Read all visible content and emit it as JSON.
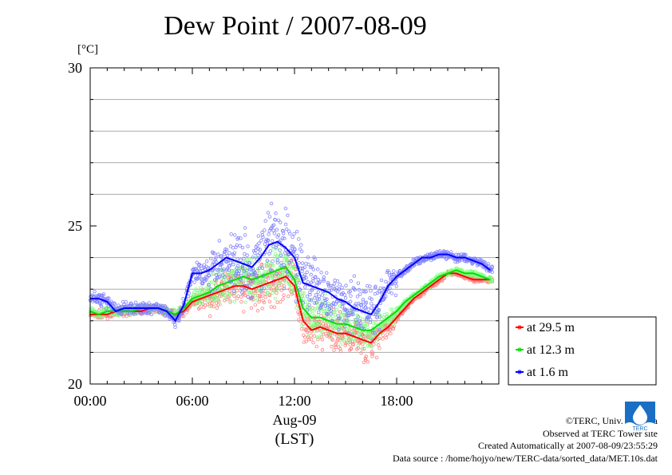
{
  "chart_data": {
    "type": "line",
    "title": "Dew Point / 2007-08-09",
    "ylabel": "[°C]",
    "xlabel": "Aug-09",
    "xlabel2": "(LST)",
    "ylim": [
      20,
      30
    ],
    "xlim": [
      0,
      24
    ],
    "yticks": [
      20,
      25,
      30
    ],
    "ygrid": [
      21,
      22,
      23,
      24,
      26,
      27,
      28,
      29
    ],
    "xticks": [
      {
        "hour": 0,
        "label": "00:00"
      },
      {
        "hour": 6,
        "label": "06:00"
      },
      {
        "hour": 12,
        "label": "12:00"
      },
      {
        "hour": 18,
        "label": "18:00"
      }
    ],
    "legend_position": "right",
    "x": [
      0,
      0.5,
      1,
      1.5,
      2,
      2.5,
      3,
      3.5,
      4,
      4.5,
      5,
      5.5,
      6,
      6.5,
      7,
      7.5,
      8,
      8.5,
      9,
      9.5,
      10,
      10.5,
      11,
      11.5,
      12,
      12.5,
      13,
      13.5,
      14,
      14.5,
      15,
      15.5,
      16,
      16.5,
      17,
      17.5,
      18,
      18.5,
      19,
      19.5,
      20,
      20.5,
      21,
      21.5,
      22,
      22.5,
      23,
      23.5
    ],
    "series": [
      {
        "name": "at 29.5 m",
        "color": "#ff0000",
        "scatter_color": "#ff8080",
        "values": [
          22.2,
          22.2,
          22.2,
          22.3,
          22.3,
          22.3,
          22.3,
          22.4,
          22.4,
          22.3,
          22.2,
          22.3,
          22.6,
          22.7,
          22.8,
          22.9,
          23.0,
          23.1,
          23.1,
          23.0,
          23.1,
          23.2,
          23.3,
          23.4,
          23.1,
          22.0,
          21.7,
          21.8,
          21.7,
          21.6,
          21.6,
          21.5,
          21.4,
          21.3,
          21.6,
          21.8,
          22.1,
          22.4,
          22.7,
          22.9,
          23.1,
          23.3,
          23.5,
          23.5,
          23.4,
          23.3,
          23.3,
          23.3
        ]
      },
      {
        "name": "at 12.3 m",
        "color": "#00dd00",
        "scatter_color": "#80ff80",
        "values": [
          22.3,
          22.2,
          22.3,
          22.3,
          22.3,
          22.3,
          22.4,
          22.4,
          22.4,
          22.3,
          22.2,
          22.4,
          22.7,
          22.8,
          22.9,
          23.1,
          23.2,
          23.3,
          23.4,
          23.3,
          23.4,
          23.5,
          23.6,
          23.7,
          23.3,
          22.4,
          22.1,
          22.1,
          22.0,
          21.9,
          21.9,
          21.8,
          21.7,
          21.7,
          21.9,
          22.1,
          22.3,
          22.6,
          22.8,
          23.0,
          23.2,
          23.4,
          23.5,
          23.6,
          23.5,
          23.5,
          23.4,
          23.3
        ]
      },
      {
        "name": "at 1.6 m",
        "color": "#0000ff",
        "scatter_color": "#8080ff",
        "values": [
          22.7,
          22.7,
          22.6,
          22.3,
          22.4,
          22.4,
          22.4,
          22.4,
          22.4,
          22.3,
          22.0,
          22.5,
          23.5,
          23.5,
          23.6,
          23.8,
          24.0,
          23.9,
          23.8,
          23.7,
          24.0,
          24.4,
          24.5,
          24.3,
          24.0,
          23.2,
          23.1,
          23.0,
          22.9,
          22.7,
          22.6,
          22.4,
          22.3,
          22.2,
          22.6,
          23.1,
          23.4,
          23.6,
          23.8,
          24.0,
          24.0,
          24.1,
          24.1,
          24.0,
          24.0,
          23.9,
          23.8,
          23.6
        ]
      }
    ]
  },
  "credits": [
    "©TERC, Univ. Tsukuba",
    "Observed at TERC Tower site",
    "Created Automatically at 2007-08-09/23:55:29",
    "Data source : /home/hojyo/new/TERC-data/sorted_data/MET.10s.dat"
  ],
  "logo_text": "TERC"
}
